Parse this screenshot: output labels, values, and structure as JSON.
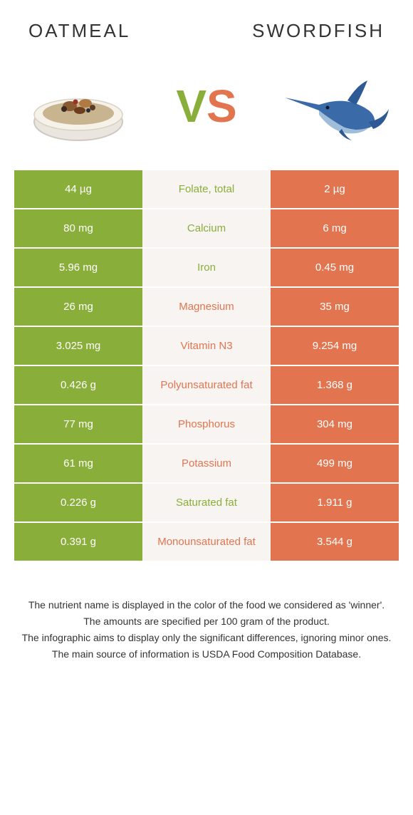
{
  "header": {
    "left_title": "Oatmeal",
    "right_title": "Swordfish",
    "vs_v": "V",
    "vs_s": "S"
  },
  "colors": {
    "green": "#8aae3a",
    "orange": "#e2754f",
    "mid_bg": "#f7f4f1"
  },
  "rows": [
    {
      "left": "44 µg",
      "label": "Folate, total",
      "right": "2 µg",
      "winner": "left"
    },
    {
      "left": "80 mg",
      "label": "Calcium",
      "right": "6 mg",
      "winner": "left"
    },
    {
      "left": "5.96 mg",
      "label": "Iron",
      "right": "0.45 mg",
      "winner": "left"
    },
    {
      "left": "26 mg",
      "label": "Magnesium",
      "right": "35 mg",
      "winner": "right"
    },
    {
      "left": "3.025 mg",
      "label": "Vitamin N3",
      "right": "9.254 mg",
      "winner": "right"
    },
    {
      "left": "0.426 g",
      "label": "Polyunsaturated fat",
      "right": "1.368 g",
      "winner": "right"
    },
    {
      "left": "77 mg",
      "label": "Phosphorus",
      "right": "304 mg",
      "winner": "right"
    },
    {
      "left": "61 mg",
      "label": "Potassium",
      "right": "499 mg",
      "winner": "right"
    },
    {
      "left": "0.226 g",
      "label": "Saturated fat",
      "right": "1.911 g",
      "winner": "left"
    },
    {
      "left": "0.391 g",
      "label": "Monounsaturated fat",
      "right": "3.544 g",
      "winner": "right"
    }
  ],
  "footer": {
    "line1": "The nutrient name is displayed in the color of the food we considered as 'winner'.",
    "line2": "The amounts are specified per 100 gram of the product.",
    "line3": "The infographic aims to display only the significant differences, ignoring minor ones.",
    "line4": "The main source of information is USDA Food Composition Database."
  }
}
